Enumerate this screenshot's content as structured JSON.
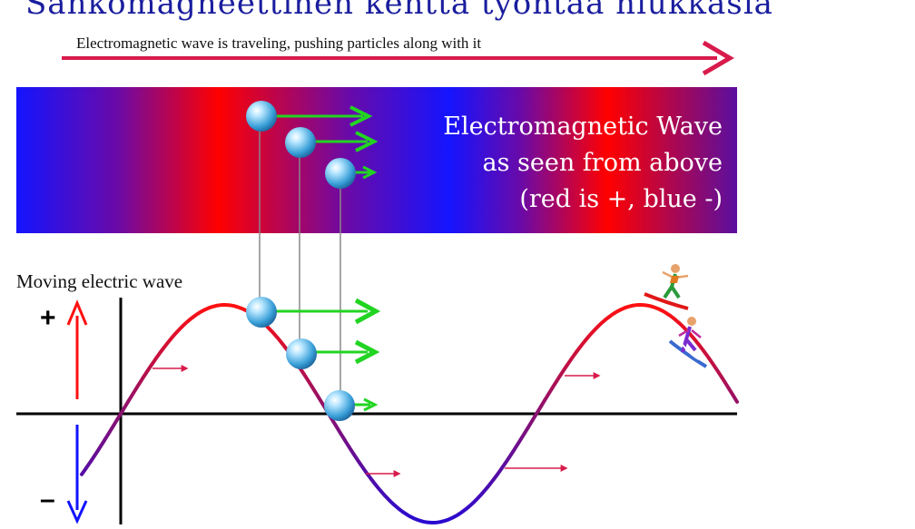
{
  "title": "Sähkömagneettinen kenttä työntää hiukkasia",
  "caption": "Electromagnetic wave is traveling, pushing particles along with it",
  "band": {
    "line1": "Electromagnetic Wave",
    "line2": "as seen from above",
    "line3": "(red is +, blue -)"
  },
  "wave_label": "Moving electric wave",
  "plus_sign": "+",
  "minus_sign": "–",
  "colors": {
    "title": "#1a1e9e",
    "arrow": "#d81b4c",
    "red": "#ff0000",
    "blue": "#1212ff",
    "purple": "#56128c",
    "green": "#22d422",
    "particle": "#3aa0d8"
  },
  "icons": [
    "particle-sphere",
    "green-push-arrow",
    "surfer-figure",
    "snowboarder-figure"
  ]
}
